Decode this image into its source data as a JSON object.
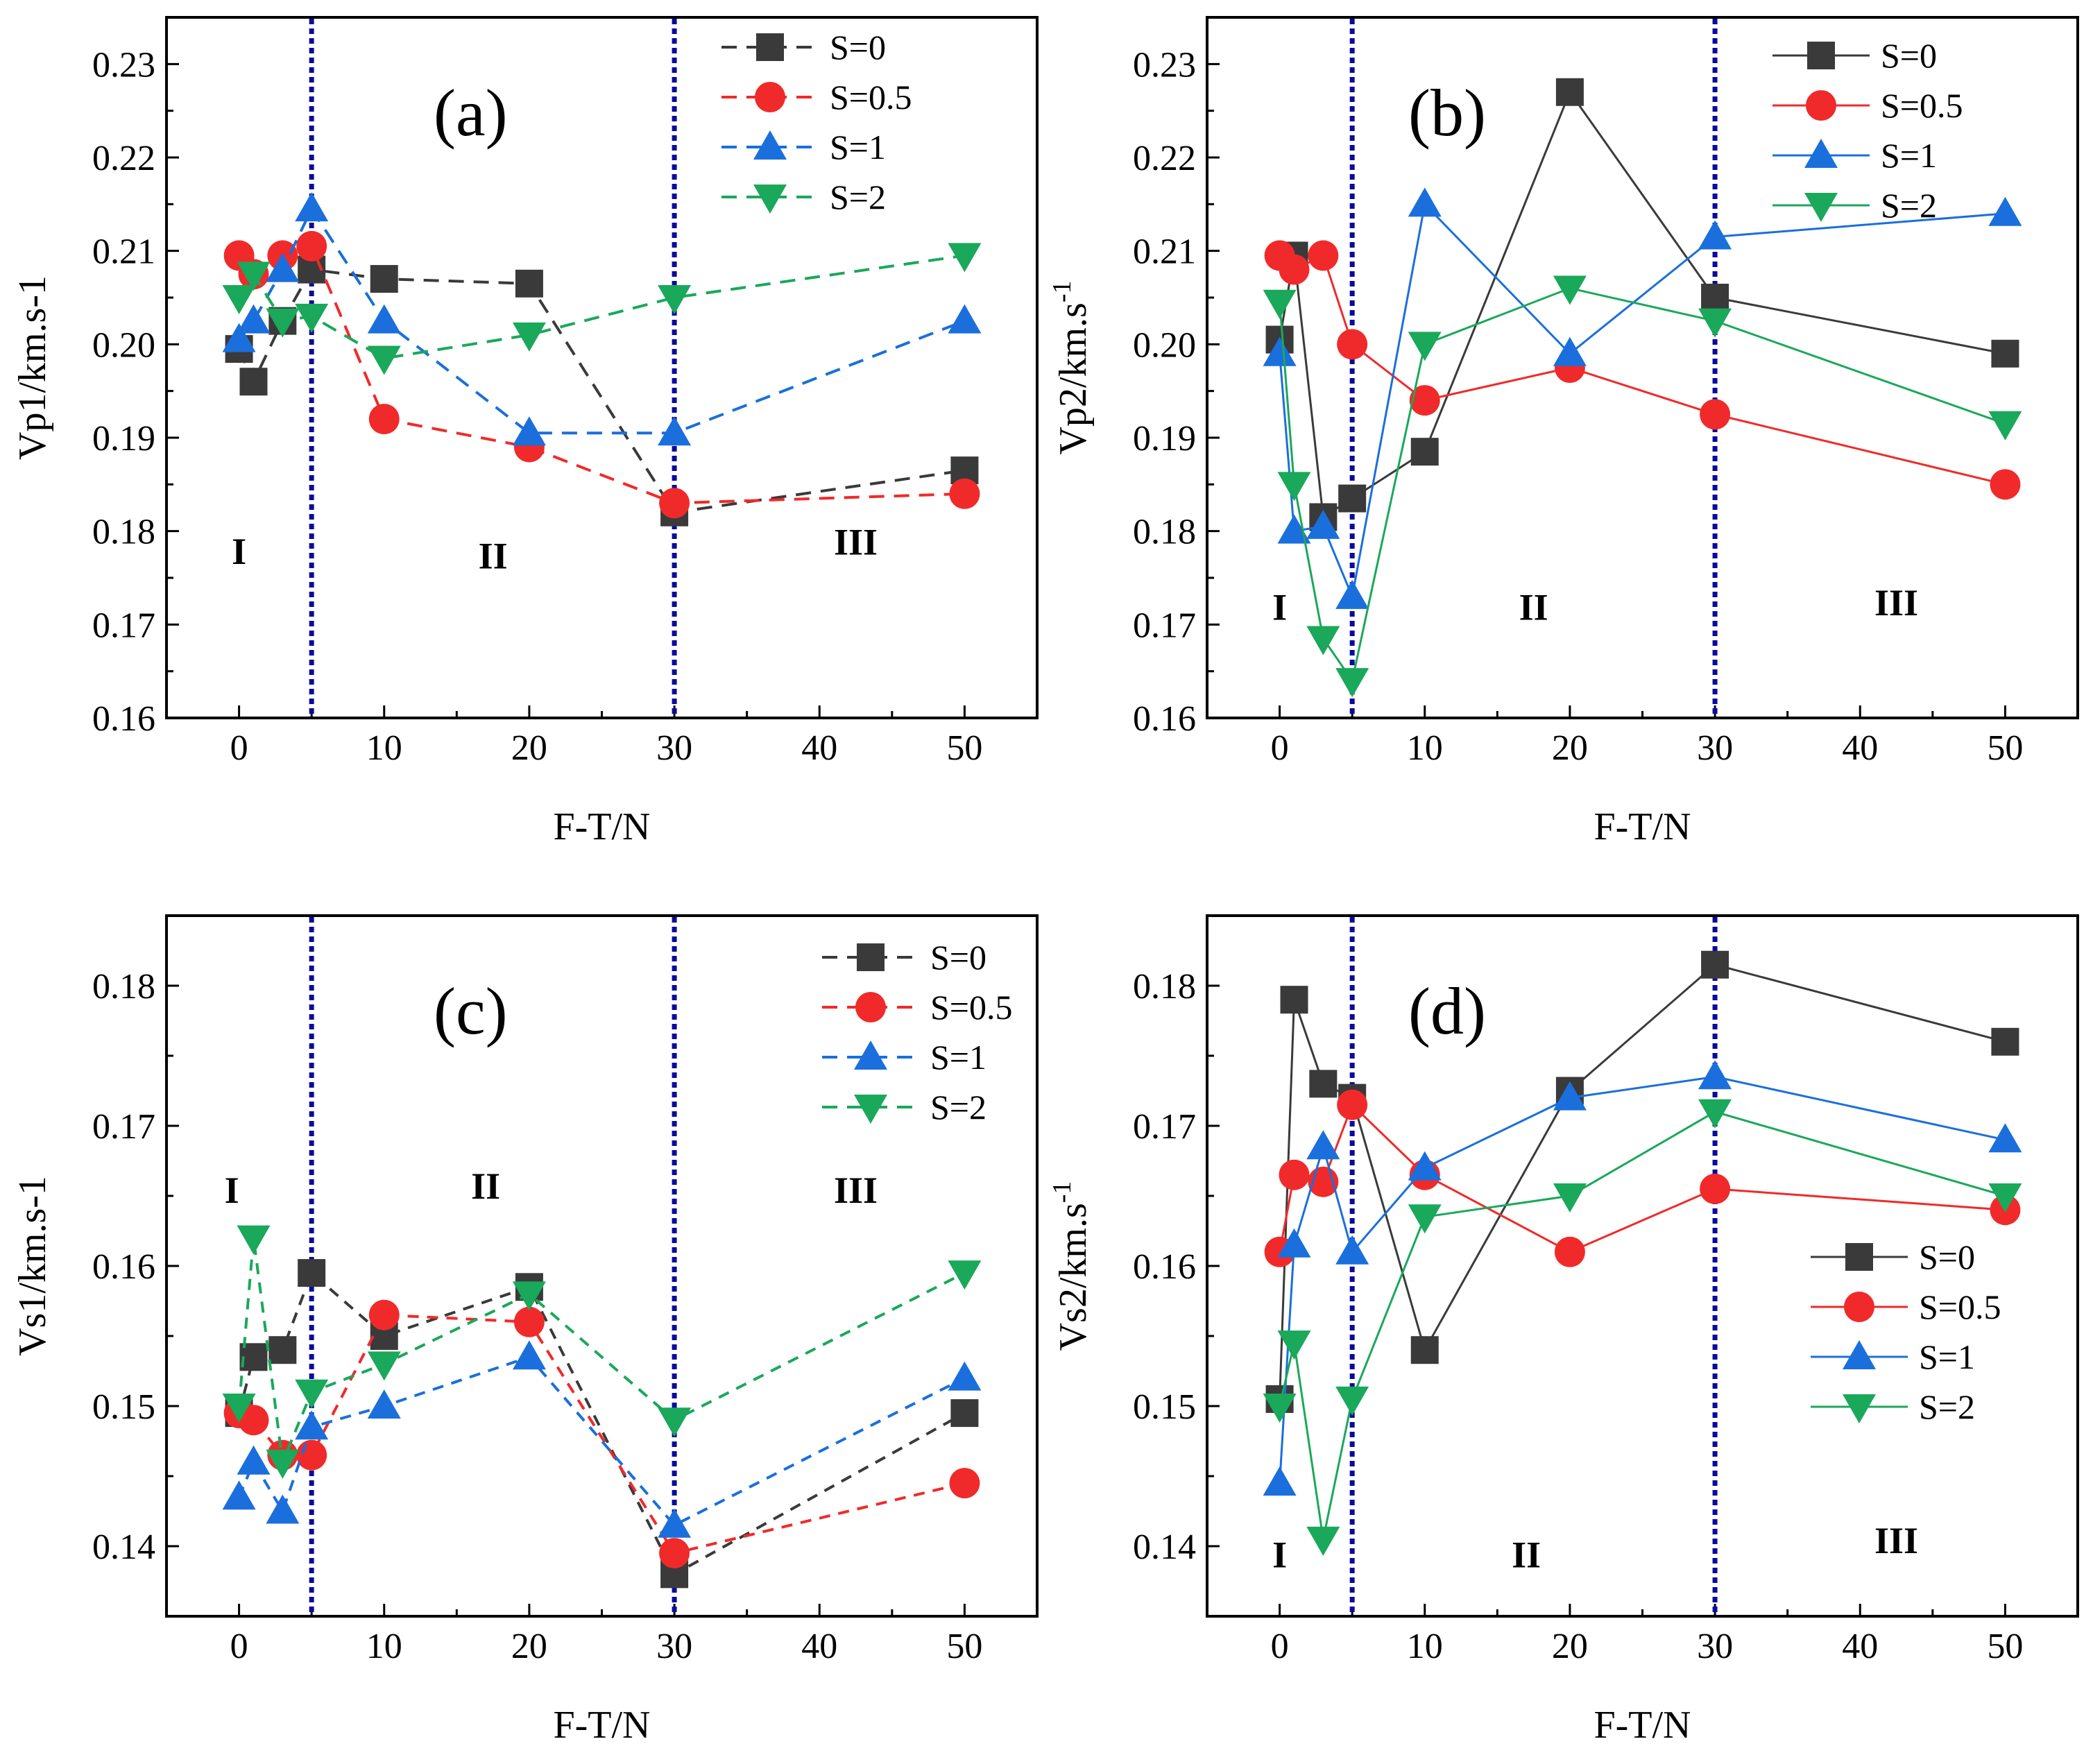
{
  "colors": {
    "S0": "#3a3a3a",
    "S05": "#f02a2a",
    "S1": "#1a6fdc",
    "S2": "#1aa85a",
    "divider": "#0a0a9c"
  },
  "chart_data": [
    {
      "id": "a",
      "type": "line",
      "panel_label": "(a)",
      "xlabel": "F-T/N",
      "ylabel": "Vp1/km.s-1",
      "line_style": "dashed",
      "xlim": [
        -5,
        55
      ],
      "ylim": [
        0.16,
        0.235
      ],
      "xticks": [
        "0",
        "10",
        "20",
        "30",
        "40",
        "50"
      ],
      "yticks": [
        "0.16",
        "0.17",
        "0.18",
        "0.19",
        "0.20",
        "0.21",
        "0.22",
        "0.23"
      ],
      "dividers": [
        5,
        30
      ],
      "regions": [
        {
          "label": "I",
          "x": 0,
          "y": 0.1765
        },
        {
          "label": "II",
          "x": 17.5,
          "y": 0.176
        },
        {
          "label": "III",
          "x": 42.5,
          "y": 0.1775
        }
      ],
      "legend_position": "top-right",
      "x": [
        0,
        1,
        3,
        5,
        10,
        20,
        30,
        50
      ],
      "series": [
        {
          "name": "S=0",
          "marker": "square",
          "values": [
            0.1995,
            0.196,
            0.2025,
            0.208,
            0.207,
            0.2065,
            0.182,
            0.1865
          ]
        },
        {
          "name": "S=0.5",
          "marker": "circle",
          "values": [
            0.2095,
            0.2075,
            0.2095,
            0.2105,
            0.192,
            0.189,
            0.183,
            0.184
          ]
        },
        {
          "name": "S=1",
          "marker": "triangle-up",
          "values": [
            0.2005,
            0.2025,
            0.208,
            0.2145,
            0.2025,
            0.1905,
            0.1905,
            0.2025
          ]
        },
        {
          "name": "S=2",
          "marker": "triangle-down",
          "values": [
            0.205,
            0.2075,
            0.2025,
            0.203,
            0.1985,
            0.201,
            0.205,
            0.2095
          ]
        }
      ]
    },
    {
      "id": "b",
      "type": "line",
      "panel_label": "(b)",
      "xlabel": "F-T/N",
      "ylabel": "Vp2/km.s",
      "ylabel_sup": "-1",
      "line_style": "solid",
      "xlim": [
        -5,
        55
      ],
      "ylim": [
        0.16,
        0.235
      ],
      "xticks": [
        "0",
        "10",
        "20",
        "30",
        "40",
        "50"
      ],
      "yticks": [
        "0.16",
        "0.17",
        "0.18",
        "0.19",
        "0.20",
        "0.21",
        "0.22",
        "0.23"
      ],
      "dividers": [
        5,
        30
      ],
      "regions": [
        {
          "label": "I",
          "x": 0,
          "y": 0.1705
        },
        {
          "label": "II",
          "x": 17.5,
          "y": 0.1705
        },
        {
          "label": "III",
          "x": 42.5,
          "y": 0.171
        }
      ],
      "legend_position": "top-right",
      "x": [
        0,
        1,
        3,
        5,
        10,
        20,
        30,
        50
      ],
      "series": [
        {
          "name": "S=0",
          "marker": "square",
          "values": [
            0.2005,
            0.2095,
            0.1815,
            0.1835,
            0.1885,
            0.227,
            0.205,
            0.199
          ]
        },
        {
          "name": "S=0.5",
          "marker": "circle",
          "values": [
            0.2095,
            0.208,
            0.2095,
            0.2,
            0.194,
            0.1975,
            0.1925,
            0.185
          ]
        },
        {
          "name": "S=1",
          "marker": "triangle-up",
          "values": [
            0.199,
            0.18,
            0.1805,
            0.173,
            0.215,
            0.199,
            0.2115,
            0.214
          ]
        },
        {
          "name": "S=2",
          "marker": "triangle-down",
          "values": [
            0.2045,
            0.185,
            0.1685,
            0.164,
            0.2,
            0.206,
            0.2025,
            0.1915
          ]
        }
      ]
    },
    {
      "id": "c",
      "type": "line",
      "panel_label": "(c)",
      "xlabel": "F-T/N",
      "ylabel": "Vs1/km.s-1",
      "line_style": "dashed-thin",
      "xlim": [
        -5,
        55
      ],
      "ylim": [
        0.135,
        0.185
      ],
      "xticks": [
        "0",
        "10",
        "20",
        "30",
        "40",
        "50"
      ],
      "yticks": [
        "0.14",
        "0.15",
        "0.16",
        "0.17",
        "0.18"
      ],
      "dividers": [
        5,
        30
      ],
      "regions": [
        {
          "label": "I",
          "x": -0.5,
          "y": 0.1645
        },
        {
          "label": "II",
          "x": 17,
          "y": 0.1648
        },
        {
          "label": "III",
          "x": 42.5,
          "y": 0.1645
        }
      ],
      "legend_position": "top-right",
      "x": [
        0,
        1,
        3,
        5,
        10,
        20,
        30,
        50
      ],
      "series": [
        {
          "name": "S=0",
          "marker": "square",
          "values": [
            0.1495,
            0.1535,
            0.154,
            0.1595,
            0.155,
            0.1585,
            0.138,
            0.1495
          ]
        },
        {
          "name": "S=0.5",
          "marker": "circle",
          "values": [
            0.1495,
            0.149,
            0.1465,
            0.1465,
            0.1565,
            0.156,
            0.1395,
            0.1445
          ]
        },
        {
          "name": "S=1",
          "marker": "triangle-up",
          "values": [
            0.1435,
            0.146,
            0.1425,
            0.1485,
            0.15,
            0.1535,
            0.1415,
            0.152
          ]
        },
        {
          "name": "S=2",
          "marker": "triangle-down",
          "values": [
            0.15,
            0.162,
            0.146,
            0.151,
            0.153,
            0.158,
            0.149,
            0.1595
          ]
        }
      ]
    },
    {
      "id": "d",
      "type": "line",
      "panel_label": "(d)",
      "xlabel": "F-T/N",
      "ylabel": "Vs2/km.s",
      "ylabel_sup": "-1",
      "line_style": "solid",
      "xlim": [
        -5,
        55
      ],
      "ylim": [
        0.135,
        0.185
      ],
      "xticks": [
        "0",
        "10",
        "20",
        "30",
        "40",
        "50"
      ],
      "yticks": [
        "0.14",
        "0.15",
        "0.16",
        "0.17",
        "0.18"
      ],
      "dividers": [
        5,
        30
      ],
      "regions": [
        {
          "label": "I",
          "x": 0,
          "y": 0.1385
        },
        {
          "label": "II",
          "x": 17,
          "y": 0.1385
        },
        {
          "label": "III",
          "x": 42.5,
          "y": 0.1395
        }
      ],
      "legend_position": "bottom-right",
      "x": [
        0,
        1,
        3,
        5,
        10,
        20,
        30,
        50
      ],
      "series": [
        {
          "name": "S=0",
          "marker": "square",
          "values": [
            0.1505,
            0.179,
            0.173,
            0.172,
            0.154,
            0.1725,
            0.1815,
            0.176
          ]
        },
        {
          "name": "S=0.5",
          "marker": "circle",
          "values": [
            0.161,
            0.1665,
            0.166,
            0.1715,
            0.1665,
            0.161,
            0.1655,
            0.164
          ]
        },
        {
          "name": "S=1",
          "marker": "triangle-up",
          "values": [
            0.1445,
            0.1615,
            0.1685,
            0.161,
            0.167,
            0.172,
            0.1735,
            0.169
          ]
        },
        {
          "name": "S=2",
          "marker": "triangle-down",
          "values": [
            0.15,
            0.1545,
            0.1405,
            0.1505,
            0.1635,
            0.165,
            0.171,
            0.165
          ]
        }
      ]
    }
  ]
}
